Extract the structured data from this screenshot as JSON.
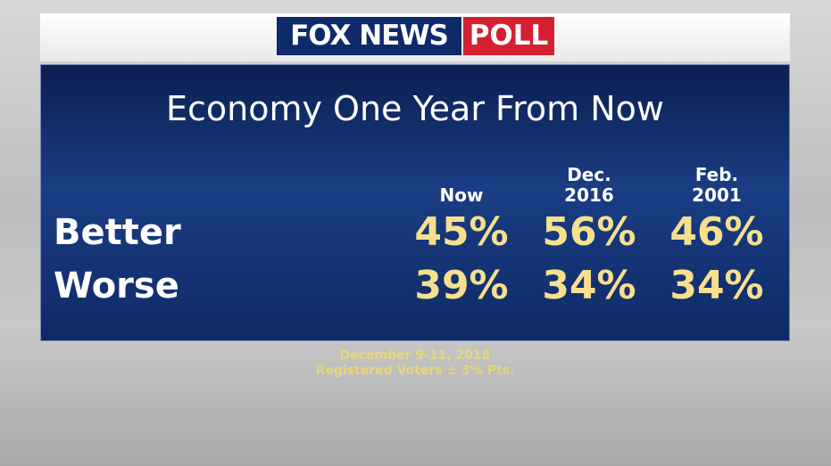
{
  "header": {
    "brand": "FOX NEWS",
    "tag": "POLL"
  },
  "title": "Economy One Year From Now",
  "table": {
    "columns": [
      [
        "Now"
      ],
      [
        "Dec.",
        "2016"
      ],
      [
        "Feb.",
        "2001"
      ]
    ],
    "rows": [
      [
        "Better",
        "45%",
        "56%",
        "46%"
      ],
      [
        "Worse",
        "39%",
        "34%",
        "34%"
      ]
    ]
  },
  "footer": [
    "December 9-11, 2018",
    "Registered Voters ± 3% Pts."
  ]
}
